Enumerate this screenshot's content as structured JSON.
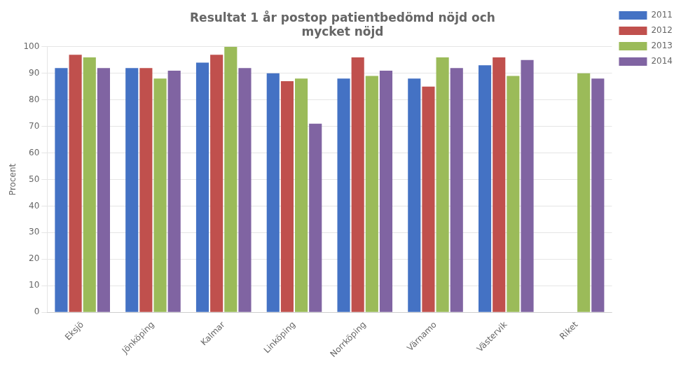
{
  "chart_data": {
    "type": "bar",
    "title": "Resultat 1 år postop patientbedömd nöjd och\nmycket nöjd",
    "y_label": "Procent",
    "categories": [
      "Eksjö",
      "Jönköping",
      "Kalmar",
      "Linköping",
      "Norrköping",
      "Värnamo",
      "Västervik",
      "Riket"
    ],
    "series": [
      {
        "name": "2011",
        "color": "#4472C4",
        "values": [
          92,
          92,
          94,
          90,
          88,
          88,
          93,
          null
        ]
      },
      {
        "name": "2012",
        "color": "#C0504D",
        "values": [
          97,
          92,
          97,
          87,
          96,
          85,
          96,
          null
        ]
      },
      {
        "name": "2013",
        "color": "#9BBB59",
        "values": [
          96,
          88,
          100,
          88,
          89,
          96,
          89,
          90
        ]
      },
      {
        "name": "2014",
        "color": "#8064A2",
        "values": [
          92,
          91,
          92,
          71,
          91,
          92,
          95,
          88
        ]
      }
    ],
    "ylim": [
      0,
      100
    ],
    "yticks": [
      0,
      10,
      20,
      30,
      40,
      50,
      60,
      70,
      80,
      90,
      100
    ],
    "grid": true,
    "legend": "right"
  }
}
